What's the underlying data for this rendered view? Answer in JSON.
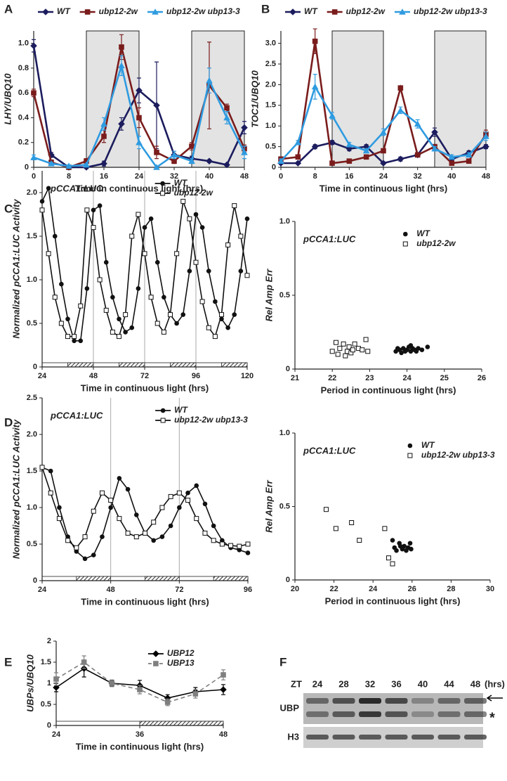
{
  "panel_labels": [
    "A",
    "B",
    "C",
    "D",
    "E",
    "F"
  ],
  "chart_data": [
    {
      "type": "line",
      "ylabel": "LHY/UBQ10",
      "xlabel": "Time in continuous light (hrs)",
      "legend": "above",
      "x": [
        0,
        4,
        8,
        12,
        16,
        20,
        24,
        28,
        32,
        36,
        40,
        44,
        48
      ],
      "xlim": [
        0,
        48
      ],
      "xticks": [
        0,
        8,
        16,
        24,
        32,
        40,
        48
      ],
      "ylim": [
        0,
        1.1
      ],
      "yticks": [
        0,
        0.2,
        0.4,
        0.6,
        0.8,
        {
          "value": 1,
          "label": "1.0"
        }
      ],
      "shaded": [
        [
          12,
          24
        ],
        [
          36,
          48
        ]
      ],
      "series": [
        {
          "name": "WT",
          "color": "#1c1c5e",
          "marker": "diamond",
          "values": [
            0.98,
            0.1,
            0.0,
            0.0,
            0.03,
            0.35,
            0.62,
            0.5,
            0.1,
            0.07,
            0.05,
            0.02,
            0.32
          ],
          "errors": [
            0.05,
            0.02,
            0.01,
            0.01,
            0.02,
            0.05,
            0.1,
            0.35,
            0.03,
            0.02,
            0.01,
            0.01,
            0.05
          ]
        },
        {
          "name": "ubp12-2w",
          "color": "#7a1c1c",
          "marker": "square",
          "values": [
            0.6,
            0.04,
            0.0,
            0.05,
            0.25,
            0.97,
            0.4,
            0.12,
            0.05,
            0.17,
            0.66,
            0.48,
            0.15
          ],
          "errors": [
            0.03,
            0.02,
            0.01,
            0.02,
            0.05,
            0.1,
            0.08,
            0.05,
            0.02,
            0.03,
            0.35,
            0.03,
            0.03
          ]
        },
        {
          "name": "ubp12-2w ubp13-3",
          "color": "#2f9be0",
          "marker": "triangle",
          "values": [
            0.08,
            0.03,
            0.01,
            0.02,
            0.35,
            0.82,
            0.2,
            0.0,
            0.1,
            0.05,
            0.7,
            0.4,
            0.12
          ],
          "errors": [
            0.02,
            0.01,
            0.01,
            0.01,
            0.05,
            0.08,
            0.05,
            0.01,
            0.03,
            0.02,
            0.1,
            0.05,
            0.05
          ]
        }
      ]
    },
    {
      "type": "line",
      "ylabel": "TOC1/UBQ10",
      "xlabel": "Time in continuous light (hrs)",
      "legend": "above",
      "x": [
        0,
        4,
        8,
        12,
        16,
        20,
        24,
        28,
        32,
        36,
        40,
        44,
        48
      ],
      "xlim": [
        0,
        48
      ],
      "xticks": [
        0,
        8,
        16,
        24,
        32,
        40,
        48
      ],
      "ylim": [
        0,
        3.3
      ],
      "yticks": [
        0,
        0.5,
        {
          "value": 1,
          "label": "1.0"
        },
        1.5,
        {
          "value": 2,
          "label": "2.0"
        },
        2.5,
        {
          "value": 3,
          "label": "3.0"
        }
      ],
      "shaded": [
        [
          12,
          24
        ],
        [
          36,
          48
        ]
      ],
      "series": [
        {
          "name": "WT",
          "color": "#1c1c5e",
          "marker": "diamond",
          "values": [
            0.1,
            0.1,
            0.5,
            0.6,
            0.45,
            0.5,
            0.1,
            0.2,
            0.3,
            0.85,
            0.2,
            0.35,
            0.5
          ],
          "errors": [
            0.02,
            0.02,
            0.05,
            0.05,
            0.05,
            0.05,
            0.02,
            0.05,
            0.05,
            0.1,
            0.05,
            0.05,
            0.05
          ]
        },
        {
          "name": "ubp12-2w",
          "color": "#7a1c1c",
          "marker": "square",
          "values": [
            0.2,
            0.25,
            3.05,
            0.1,
            0.15,
            0.25,
            0.4,
            1.92,
            0.3,
            0.5,
            0.1,
            0.15,
            0.8
          ],
          "errors": [
            0.02,
            0.03,
            0.3,
            0.02,
            0.02,
            0.03,
            0.05,
            0.05,
            0.03,
            0.05,
            0.02,
            0.03,
            0.1
          ]
        },
        {
          "name": "ubp12-2w ubp13-3",
          "color": "#2f9be0",
          "marker": "triangle",
          "values": [
            0.15,
            0.6,
            1.95,
            1.25,
            0.55,
            0.4,
            0.85,
            1.38,
            1.05,
            0.45,
            0.25,
            0.3,
            0.75
          ],
          "errors": [
            0.05,
            0.05,
            0.3,
            0.08,
            0.05,
            0.05,
            0.08,
            0.08,
            0.1,
            0.05,
            0.05,
            0.05,
            0.1
          ]
        }
      ]
    },
    {
      "type": "line",
      "ylabel": "Normalized pCCA1:LUC Activity",
      "xlabel": "Time in continuous light (hrs)",
      "annotation": "pCCA1:LUC",
      "legend": "upper right",
      "x": [
        24,
        27,
        30,
        33,
        36,
        39,
        42,
        45,
        48,
        51,
        54,
        57,
        60,
        63,
        66,
        69,
        72,
        75,
        78,
        81,
        84,
        87,
        90,
        93,
        96,
        99,
        102,
        105,
        108,
        111,
        114,
        117,
        120
      ],
      "xlim": [
        24,
        120
      ],
      "xticks": [
        24,
        48,
        72,
        96,
        120
      ],
      "ylim": [
        0,
        2.25
      ],
      "yticks": [
        0,
        0.5,
        {
          "value": 1,
          "label": "1.0"
        },
        1.5,
        {
          "value": 2,
          "label": "2.0"
        }
      ],
      "dark_periods": [
        [
          36,
          48
        ],
        [
          60,
          72
        ],
        [
          84,
          96
        ],
        [
          108,
          120
        ]
      ],
      "reference_lines": [
        48,
        72,
        96
      ],
      "series": [
        {
          "name": "WT",
          "color": "#111111",
          "marker": "circle",
          "values": [
            1.9,
            2.05,
            1.5,
            0.95,
            0.55,
            0.3,
            0.3,
            0.9,
            1.8,
            1.85,
            1.2,
            0.8,
            0.55,
            0.4,
            0.45,
            0.9,
            1.6,
            1.7,
            1.2,
            0.8,
            0.6,
            0.5,
            0.6,
            1.1,
            1.75,
            1.6,
            1.1,
            0.75,
            0.55,
            0.45,
            0.6,
            1.1,
            1.7
          ]
        },
        {
          "name": "ubp12-2w",
          "color": "#111111",
          "marker": "open-square",
          "values": [
            1.8,
            1.3,
            0.8,
            0.5,
            0.35,
            0.35,
            0.7,
            1.8,
            1.6,
            1.0,
            0.65,
            0.4,
            0.35,
            0.6,
            1.5,
            1.75,
            1.3,
            0.8,
            0.5,
            0.4,
            0.6,
            1.3,
            1.9,
            1.7,
            1.2,
            0.75,
            0.45,
            0.35,
            0.6,
            1.4,
            1.85,
            1.5,
            1.05
          ]
        }
      ]
    },
    {
      "type": "scatter",
      "ylabel": "Rel Amp Err",
      "xlabel": "Period in continuous light (hrs)",
      "annotation": "pCCA1:LUC",
      "legend": "upper right",
      "xlim": [
        21,
        26
      ],
      "xticks": [
        21,
        22,
        23,
        24,
        25,
        26
      ],
      "ylim": [
        0,
        1
      ],
      "yticks": [
        0,
        0.5,
        {
          "value": 1,
          "label": "1.0"
        }
      ],
      "series": [
        {
          "name": "WT",
          "color": "#111111",
          "marker": "circle",
          "x": [
            23.7,
            23.8,
            23.85,
            23.9,
            23.95,
            24.0,
            24.05,
            24.1,
            24.15,
            24.2,
            24.25,
            24.3,
            24.4,
            24.55,
            23.75,
            24.1
          ],
          "values": [
            0.12,
            0.13,
            0.11,
            0.14,
            0.12,
            0.13,
            0.15,
            0.12,
            0.14,
            0.13,
            0.12,
            0.14,
            0.13,
            0.15,
            0.14,
            0.16
          ]
        },
        {
          "name": "ubp12-2w",
          "color": "#111111",
          "marker": "open-square",
          "x": [
            22.0,
            22.1,
            22.15,
            22.2,
            22.3,
            22.35,
            22.4,
            22.45,
            22.5,
            22.55,
            22.6,
            22.7,
            22.8,
            22.9,
            22.95
          ],
          "values": [
            0.12,
            0.18,
            0.1,
            0.14,
            0.17,
            0.09,
            0.12,
            0.15,
            0.11,
            0.13,
            0.17,
            0.14,
            0.13,
            0.2,
            0.12
          ]
        }
      ]
    },
    {
      "type": "line",
      "ylabel": "Normalized pCCA1:LUC Activity",
      "xlabel": "Time in continuous light (hrs)",
      "annotation": "pCCA1:LUC",
      "legend": "upper right",
      "x": [
        24,
        27,
        30,
        33,
        36,
        39,
        42,
        45,
        48,
        51,
        54,
        57,
        60,
        63,
        66,
        69,
        72,
        75,
        78,
        81,
        84,
        87,
        90,
        93,
        96
      ],
      "xlim": [
        24,
        96
      ],
      "xticks": [
        24,
        48,
        72,
        96
      ],
      "ylim": [
        0,
        2.5
      ],
      "yticks": [
        0,
        0.5,
        {
          "value": 1,
          "label": "1.0"
        },
        1.5,
        {
          "value": 2,
          "label": "2.0"
        },
        2.5
      ],
      "dark_periods": [
        [
          36,
          48
        ],
        [
          60,
          72
        ],
        [
          84,
          96
        ]
      ],
      "reference_lines": [
        48,
        72
      ],
      "series": [
        {
          "name": "WT",
          "color": "#111111",
          "marker": "circle",
          "values": [
            1.55,
            1.5,
            1.0,
            0.6,
            0.4,
            0.3,
            0.35,
            0.6,
            1.0,
            1.4,
            1.25,
            0.9,
            0.65,
            0.55,
            0.6,
            0.75,
            1.0,
            1.2,
            1.3,
            1.05,
            0.75,
            0.55,
            0.45,
            0.42,
            0.38
          ]
        },
        {
          "name": "ubp12-2w ubp13-3",
          "color": "#111111",
          "marker": "open-square",
          "values": [
            1.55,
            1.2,
            0.85,
            0.55,
            0.45,
            0.6,
            0.95,
            1.2,
            1.1,
            0.85,
            0.65,
            0.6,
            0.65,
            0.8,
            1.0,
            1.15,
            1.2,
            1.1,
            0.85,
            0.65,
            0.55,
            0.5,
            0.48,
            0.47,
            0.5
          ]
        }
      ]
    },
    {
      "type": "scatter",
      "ylabel": "Rel Amp Err",
      "xlabel": "Period in continuous light (hrs)",
      "annotation": "pCCA1:LUC",
      "legend": "upper right",
      "xlim": [
        20,
        30
      ],
      "xticks": [
        20,
        22,
        24,
        26,
        28,
        30
      ],
      "ylim": [
        0,
        1
      ],
      "yticks": [
        0,
        0.5,
        {
          "value": 1,
          "label": "1.0"
        }
      ],
      "series": [
        {
          "name": "WT",
          "color": "#111111",
          "marker": "circle",
          "x": [
            25.0,
            25.1,
            25.2,
            25.35,
            25.5,
            25.6,
            25.7,
            25.8,
            25.9,
            25.95,
            25.4
          ],
          "values": [
            0.27,
            0.22,
            0.2,
            0.25,
            0.21,
            0.23,
            0.2,
            0.22,
            0.25,
            0.21,
            0.23
          ]
        },
        {
          "name": "ubp12-2w ubp13-3",
          "color": "#111111",
          "marker": "open-square",
          "x": [
            21.6,
            22.1,
            22.9,
            23.3,
            24.6,
            24.8,
            25.0
          ],
          "values": [
            0.48,
            0.35,
            0.39,
            0.27,
            0.35,
            0.15,
            0.11
          ]
        }
      ]
    },
    {
      "type": "line",
      "ylabel": "UBPs/UBQ10",
      "xlabel": "Time in continuous light (hrs)",
      "legend": "upper right",
      "x": [
        24,
        28,
        32,
        36,
        40,
        44,
        48
      ],
      "xlim": [
        24,
        48
      ],
      "xticks": [
        24,
        36,
        48
      ],
      "ylim": [
        0,
        2
      ],
      "yticks": [
        0,
        0.5,
        1,
        1.5,
        2
      ],
      "dark_periods": [
        [
          36,
          48
        ]
      ],
      "series": [
        {
          "name": "UBP12",
          "color": "#000000",
          "marker": "diamond",
          "values": [
            0.9,
            1.35,
            1.0,
            0.95,
            0.65,
            0.8,
            0.85
          ],
          "errors": [
            0.1,
            0.2,
            0.07,
            0.12,
            0.08,
            0.1,
            0.12
          ]
        },
        {
          "name": "UBP13",
          "color": "#7f7f7f",
          "marker": "square",
          "line_style": "dashed",
          "values": [
            1.1,
            1.5,
            1.0,
            0.85,
            0.55,
            0.75,
            1.2
          ],
          "errors": [
            0.15,
            0.15,
            0.08,
            0.1,
            0.08,
            0.1,
            0.12
          ]
        }
      ]
    }
  ],
  "blot": {
    "zt_label": "ZT",
    "lanes": [
      "24",
      "28",
      "32",
      "36",
      "40",
      "44",
      "48"
    ],
    "unit": "(hrs)",
    "rows": [
      "UBP",
      "H3"
    ],
    "marker": "*"
  }
}
